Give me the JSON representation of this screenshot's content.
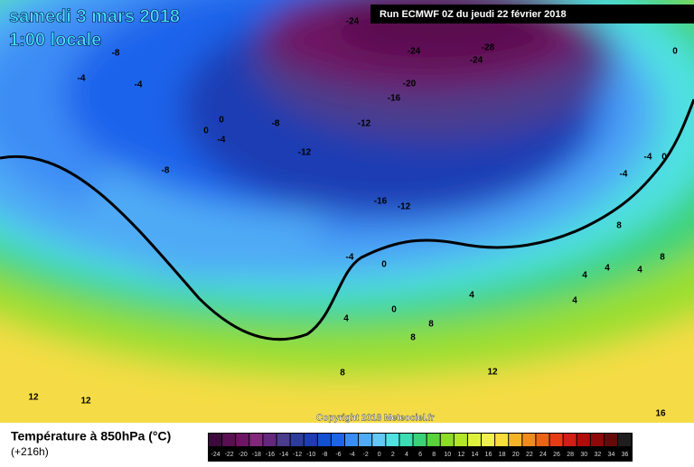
{
  "header": {
    "date": "samedi 3 mars 2018",
    "time": "1:00 locale",
    "run": "Run ECMWF 0Z du jeudi 22 février 2018"
  },
  "map": {
    "contour_labels": [
      -24,
      -24,
      -28,
      -24,
      -20,
      -16,
      -12,
      -8,
      -4,
      -4,
      -8,
      -12,
      -8,
      0,
      0,
      -4,
      -16,
      -12,
      -4,
      0,
      0,
      4,
      4,
      8,
      8,
      8,
      12,
      12,
      12,
      16,
      0,
      -4,
      -4,
      0,
      8,
      4,
      4,
      8,
      4,
      4
    ],
    "copyright": "Copyright 2018 Meteociel.fr"
  },
  "legend": {
    "title": "Température à 850hPa (°C)",
    "lead_time": "(+216h)",
    "labels": [
      -24,
      -22,
      -20,
      -18,
      -16,
      -14,
      -12,
      -10,
      -8,
      -6,
      -4,
      -2,
      0,
      2,
      4,
      6,
      8,
      10,
      12,
      14,
      16,
      18,
      20,
      22,
      24,
      26,
      28,
      30,
      32,
      34,
      36
    ],
    "colors": [
      "#3c0a3c",
      "#5a1050",
      "#6e1464",
      "#82287a",
      "#64287e",
      "#4b3c8c",
      "#2d3c9b",
      "#1e3cb4",
      "#1450d2",
      "#1e64eb",
      "#3c8cf5",
      "#50aaf5",
      "#64c8f5",
      "#50e1e1",
      "#3cdcb4",
      "#3cd278",
      "#5ad23c",
      "#8cdc28",
      "#b4e628",
      "#dcf03c",
      "#f0f050",
      "#fadc3c",
      "#f5b428",
      "#f08c1e",
      "#eb6414",
      "#e63c14",
      "#d21e14",
      "#b40a0a",
      "#8c0a0a",
      "#640a0a",
      "#1e1e1e"
    ]
  }
}
